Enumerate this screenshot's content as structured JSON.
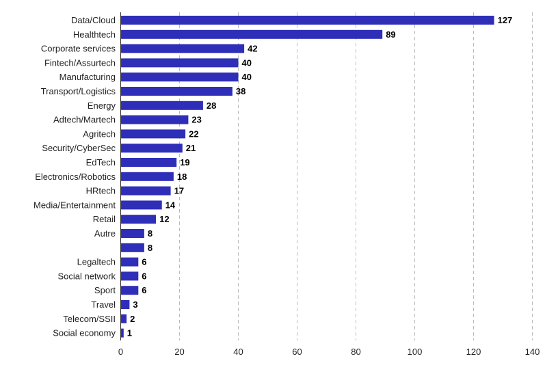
{
  "chart_data": {
    "type": "bar",
    "orientation": "horizontal",
    "categories": [
      "Data/Cloud",
      "Healthtech",
      "Corporate services",
      "Fintech/Assurtech",
      "Manufacturing",
      "Transport/Logistics",
      "Energy",
      "Adtech/Martech",
      "Agritech",
      "Security/CyberSec",
      "EdTech",
      "Electronics/Robotics",
      "HRtech",
      "Media/Entertainment",
      "Retail",
      "Autre",
      "",
      "Legaltech",
      "Social network",
      "Sport",
      "Travel",
      "Telecom/SSII",
      "Social economy"
    ],
    "values": [
      127,
      89,
      42,
      40,
      40,
      38,
      28,
      23,
      22,
      21,
      19,
      18,
      17,
      14,
      12,
      8,
      8,
      6,
      6,
      6,
      3,
      2,
      1
    ],
    "data_labels": [
      "127",
      "89",
      "42",
      "40",
      "40",
      "38",
      "28",
      "23",
      "22",
      "21",
      "19",
      "18",
      "17",
      "14",
      "12",
      "8",
      "8",
      "6",
      "6",
      "6",
      "3",
      "2",
      "1"
    ],
    "xticks": [
      "0",
      "20",
      "40",
      "60",
      "80",
      "100",
      "120",
      "140"
    ],
    "xlim": [
      0,
      140
    ],
    "grid": "vertical dashed",
    "title": "",
    "xlabel": "",
    "ylabel": "",
    "colors": {
      "bar": "#2e2eb8",
      "grid": "#bbbbbb",
      "axis": "#333333"
    }
  }
}
